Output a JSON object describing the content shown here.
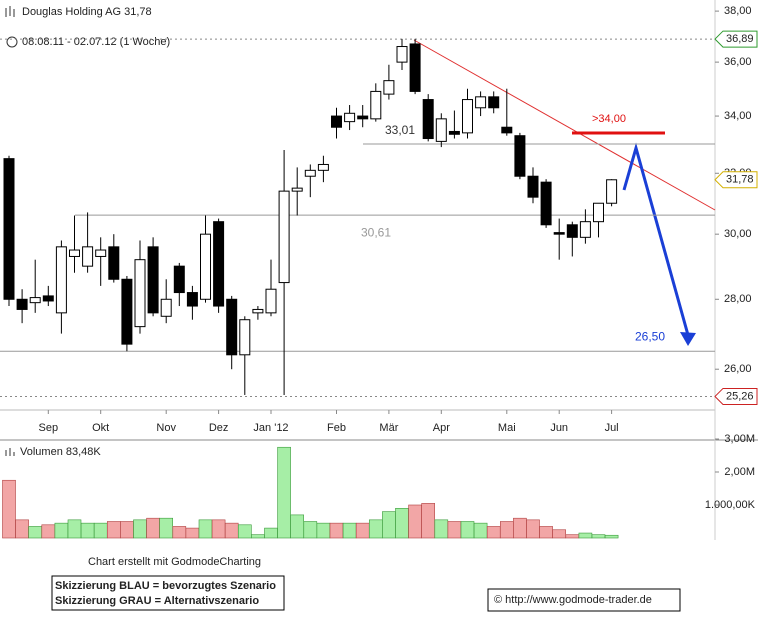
{
  "chart_data": {
    "type": "candlestick",
    "title": "Douglas Holding AG 31,78",
    "subtitle": "08.08.11 - 02.07.12 (1 Woche)",
    "open": [
      32.5,
      28,
      27.9,
      28.1,
      27.6,
      29.3,
      29,
      29.3,
      29.6,
      28.6,
      27.2,
      29.6,
      27.5,
      29,
      28.2,
      28,
      30.4,
      28,
      26.4,
      27.6,
      27.6,
      28.5,
      31.4,
      31.9,
      32.1,
      34,
      33.8,
      34,
      33.9,
      34.8,
      36,
      36.7,
      34.6,
      33.1,
      33.45,
      33.4,
      34.3,
      34.7,
      33.6,
      33.3,
      31.9,
      31.7,
      30.05,
      30.3,
      29.9,
      30.4,
      31
    ],
    "high": [
      32.6,
      28.3,
      29.2,
      28.4,
      29.8,
      30.6,
      30.7,
      29.9,
      30,
      28.7,
      29.8,
      29.9,
      28.6,
      29.1,
      28.4,
      30.6,
      30.5,
      28.1,
      27.5,
      27.8,
      29.2,
      32.8,
      32.2,
      32.3,
      32.6,
      34.3,
      34.4,
      34.4,
      35.2,
      35.9,
      36.9,
      36.9,
      34.8,
      34.1,
      34.2,
      35,
      34.9,
      34.9,
      35,
      33.4,
      32.2,
      31.8,
      30.5,
      30.4,
      30.8,
      31,
      31.8
    ],
    "low": [
      27.8,
      27.3,
      27.6,
      27.8,
      27,
      28.8,
      28.8,
      28.4,
      28.5,
      26.5,
      27,
      27.5,
      27.3,
      27.8,
      27.4,
      27.9,
      27.6,
      26,
      25.3,
      27.4,
      27.5,
      25.3,
      30.6,
      31.2,
      31.7,
      33.2,
      33.5,
      33.6,
      33.8,
      34.6,
      35.7,
      34.8,
      33.1,
      32.9,
      33.2,
      33.2,
      34,
      34.1,
      33.3,
      31.8,
      31,
      30.2,
      29.2,
      29.3,
      29.7,
      29.9,
      30.9
    ],
    "close": [
      28,
      27.7,
      28.05,
      27.95,
      29.6,
      29.5,
      29.6,
      29.5,
      28.6,
      26.7,
      29.2,
      27.6,
      28,
      28.2,
      27.8,
      30,
      27.8,
      26.4,
      27.4,
      27.7,
      28.3,
      31.4,
      31.5,
      32.1,
      32.3,
      33.6,
      34.1,
      33.9,
      34.9,
      35.3,
      36.6,
      34.9,
      33.2,
      33.9,
      33.35,
      34.6,
      34.7,
      34.3,
      33.4,
      31.9,
      31.2,
      30.3,
      30,
      29.9,
      30.4,
      31,
      31.78
    ],
    "xticks": [
      {
        "value": 3,
        "label": "Sep"
      },
      {
        "value": 7,
        "label": "Okt"
      },
      {
        "value": 12,
        "label": "Nov"
      },
      {
        "value": 16,
        "label": "Dez"
      },
      {
        "value": 20,
        "label": "Jan '12"
      },
      {
        "value": 25,
        "label": "Feb"
      },
      {
        "value": 29,
        "label": "Mär"
      },
      {
        "value": 33,
        "label": "Apr"
      },
      {
        "value": 38,
        "label": "Mai"
      },
      {
        "value": 42,
        "label": "Jun"
      },
      {
        "value": 46,
        "label": "Jul"
      }
    ],
    "ylim": [
      24.9,
      38.45
    ],
    "log_scale": true,
    "yticks": [
      {
        "value": 38,
        "label": "38,00"
      },
      {
        "value": 36,
        "label": "36,00"
      },
      {
        "value": 34,
        "label": "34,00"
      },
      {
        "value": 32,
        "label": "32,00"
      },
      {
        "value": 30,
        "label": "30,00"
      },
      {
        "value": 28,
        "label": "28,00"
      },
      {
        "value": 26,
        "label": "26,00"
      }
    ],
    "levels": [
      {
        "value": 33.01,
        "label": "33,01",
        "color": "#333333"
      },
      {
        "value": 30.61,
        "label": "30,61",
        "color": "#999999"
      },
      {
        "value": 26.5,
        "label": "26,50",
        "color": "#1a3fd6"
      }
    ],
    "price_tags": [
      {
        "value": 36.89,
        "label": "36,89",
        "color": "#2e9a2e"
      },
      {
        "value": 31.78,
        "label": "31,78",
        "color": "#d4b000"
      },
      {
        "value": 25.26,
        "label": "25,26",
        "color": "#cc2222"
      }
    ],
    "annotation": ">34,00",
    "volume": {
      "label": "Volumen 83,48K",
      "ylim": [
        0,
        3
      ],
      "yticks": [
        {
          "value": 1,
          "label": "1.000,00K"
        },
        {
          "value": 2,
          "label": "2,00M"
        },
        {
          "value": 3,
          "label": "3,00M"
        }
      ],
      "values": [
        1.75,
        0.55,
        0.35,
        0.4,
        0.45,
        0.55,
        0.45,
        0.45,
        0.5,
        0.5,
        0.55,
        0.6,
        0.6,
        0.35,
        0.3,
        0.55,
        0.55,
        0.45,
        0.4,
        0.1,
        0.3,
        2.75,
        0.7,
        0.5,
        0.45,
        0.45,
        0.45,
        0.45,
        0.55,
        0.8,
        0.9,
        1.0,
        1.05,
        0.55,
        0.5,
        0.5,
        0.45,
        0.35,
        0.5,
        0.6,
        0.55,
        0.35,
        0.25,
        0.1,
        0.15,
        0.1,
        0.08348
      ]
    },
    "credit": "Chart erstellt mit GodmodeCharting",
    "legend_lines": [
      "Skizzierung BLAU = bevorzugtes Szenario",
      "Skizzierung GRAU = Alternativszenario"
    ],
    "copyright": "© http://www.godmode-trader.de"
  }
}
